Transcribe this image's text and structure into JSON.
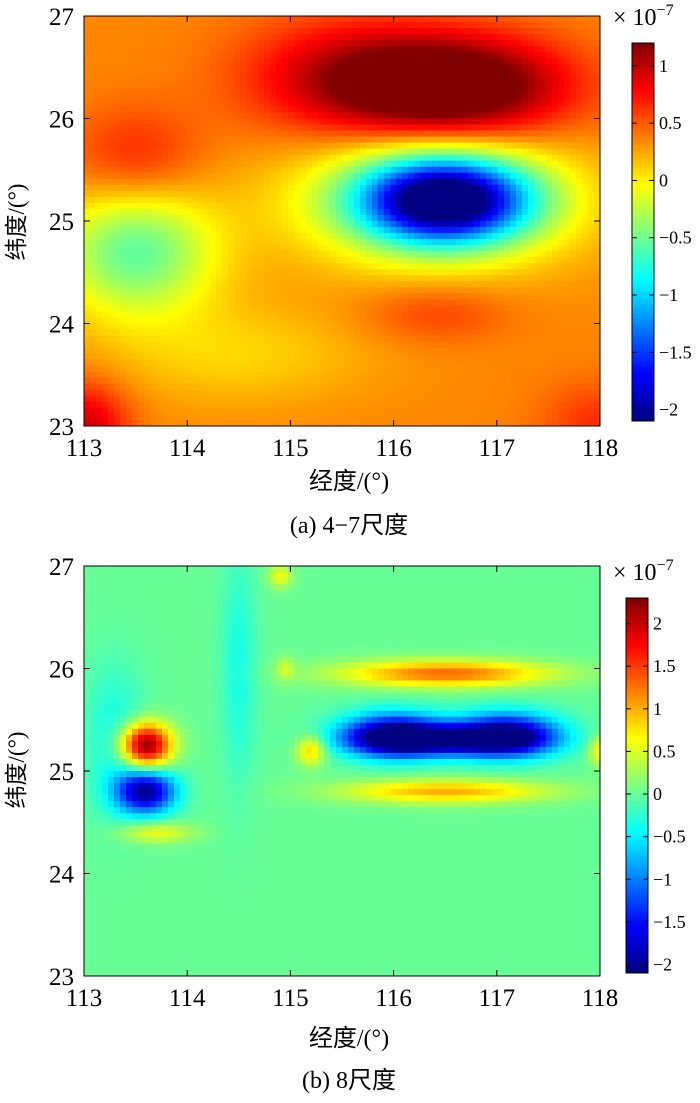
{
  "chart_data": [
    {
      "type": "heatmap",
      "caption": "(a) 4−7尺度",
      "xlabel": "经度/(°)",
      "ylabel": "纬度/(°)",
      "xlim": [
        113,
        118
      ],
      "ylim": [
        23,
        27
      ],
      "x_ticks": [
        "113",
        "114",
        "115",
        "116",
        "117",
        "118"
      ],
      "y_ticks": [
        "23",
        "24",
        "25",
        "26",
        "27"
      ],
      "colorbar": {
        "scale_base": "× 10",
        "scale_exp": "−7",
        "range": [
          -2.1,
          1.2
        ],
        "ticks": [
          "1",
          "0.5",
          "0",
          "−0.5",
          "−1",
          "−1.5",
          "−2"
        ],
        "tick_values": [
          1,
          0.5,
          0,
          -0.5,
          -1,
          -1.5,
          -2
        ],
        "colormap": "jet"
      },
      "baseline": 0.35,
      "features": [
        {
          "lon": 116.6,
          "lat": 26.3,
          "value": 1.2,
          "sx": 0.75,
          "sy": 0.35
        },
        {
          "lon": 115.5,
          "lat": 26.4,
          "value": 0.55,
          "sx": 0.7,
          "sy": 0.4
        },
        {
          "lon": 116.5,
          "lat": 25.2,
          "value": -2.1,
          "sx": 0.55,
          "sy": 0.28
        },
        {
          "lon": 116.4,
          "lat": 25.2,
          "value": -0.9,
          "sx": 0.95,
          "sy": 0.45
        },
        {
          "lon": 113.5,
          "lat": 24.7,
          "value": -0.9,
          "sx": 0.55,
          "sy": 0.45
        },
        {
          "lon": 113.5,
          "lat": 25.6,
          "value": 0.35,
          "sx": 0.45,
          "sy": 0.35
        },
        {
          "lon": 116.4,
          "lat": 24.1,
          "value": 0.25,
          "sx": 0.5,
          "sy": 0.2
        },
        {
          "lon": 113.0,
          "lat": 23.0,
          "value": 0.6,
          "sx": 0.3,
          "sy": 0.3
        },
        {
          "lon": 118.0,
          "lat": 23.0,
          "value": 0.3,
          "sx": 0.4,
          "sy": 0.3
        },
        {
          "lon": 114.5,
          "lat": 23.7,
          "value": -0.25,
          "sx": 0.9,
          "sy": 0.35
        }
      ]
    },
    {
      "type": "heatmap",
      "caption": "(b) 8尺度",
      "xlabel": "经度/(°)",
      "ylabel": "纬度/(°)",
      "xlim": [
        113,
        118
      ],
      "ylim": [
        23,
        27
      ],
      "x_ticks": [
        "113",
        "114",
        "115",
        "116",
        "117",
        "118"
      ],
      "y_ticks": [
        "23",
        "24",
        "25",
        "26",
        "27"
      ],
      "colorbar": {
        "scale_base": "× 10",
        "scale_exp": "−7",
        "range": [
          -2.1,
          2.3
        ],
        "ticks": [
          "2",
          "1.5",
          "1",
          "0.5",
          "0",
          "−0.5",
          "−1",
          "−1.5",
          "−2"
        ],
        "tick_values": [
          2,
          1.5,
          1,
          0.5,
          0,
          -0.5,
          -1,
          -1.5,
          -2
        ],
        "colormap": "jet"
      },
      "baseline": 0.0,
      "features": [
        {
          "lon": 113.6,
          "lat": 25.25,
          "value": 2.3,
          "sx": 0.17,
          "sy": 0.15
        },
        {
          "lon": 113.6,
          "lat": 24.8,
          "value": -2.0,
          "sx": 0.2,
          "sy": 0.15
        },
        {
          "lon": 113.7,
          "lat": 24.4,
          "value": 0.6,
          "sx": 0.25,
          "sy": 0.07
        },
        {
          "lon": 116.0,
          "lat": 25.35,
          "value": -2.0,
          "sx": 0.35,
          "sy": 0.15
        },
        {
          "lon": 117.1,
          "lat": 25.35,
          "value": -2.0,
          "sx": 0.35,
          "sy": 0.15
        },
        {
          "lon": 116.5,
          "lat": 25.3,
          "value": -1.6,
          "sx": 0.55,
          "sy": 0.1
        },
        {
          "lon": 116.5,
          "lat": 25.95,
          "value": 1.3,
          "sx": 0.7,
          "sy": 0.09
        },
        {
          "lon": 116.5,
          "lat": 24.8,
          "value": 1.0,
          "sx": 0.7,
          "sy": 0.08
        },
        {
          "lon": 115.2,
          "lat": 25.2,
          "value": 0.9,
          "sx": 0.1,
          "sy": 0.1
        },
        {
          "lon": 118.0,
          "lat": 25.2,
          "value": 0.7,
          "sx": 0.08,
          "sy": 0.1
        },
        {
          "lon": 114.9,
          "lat": 26.9,
          "value": 0.6,
          "sx": 0.08,
          "sy": 0.08
        },
        {
          "lon": 114.95,
          "lat": 26.0,
          "value": 0.4,
          "sx": 0.06,
          "sy": 0.08
        },
        {
          "lon": 114.5,
          "lat": 26.0,
          "value": -0.35,
          "sx": 0.12,
          "sy": 0.8
        },
        {
          "lon": 113.3,
          "lat": 25.3,
          "value": -0.4,
          "sx": 0.2,
          "sy": 0.5
        }
      ]
    }
  ]
}
